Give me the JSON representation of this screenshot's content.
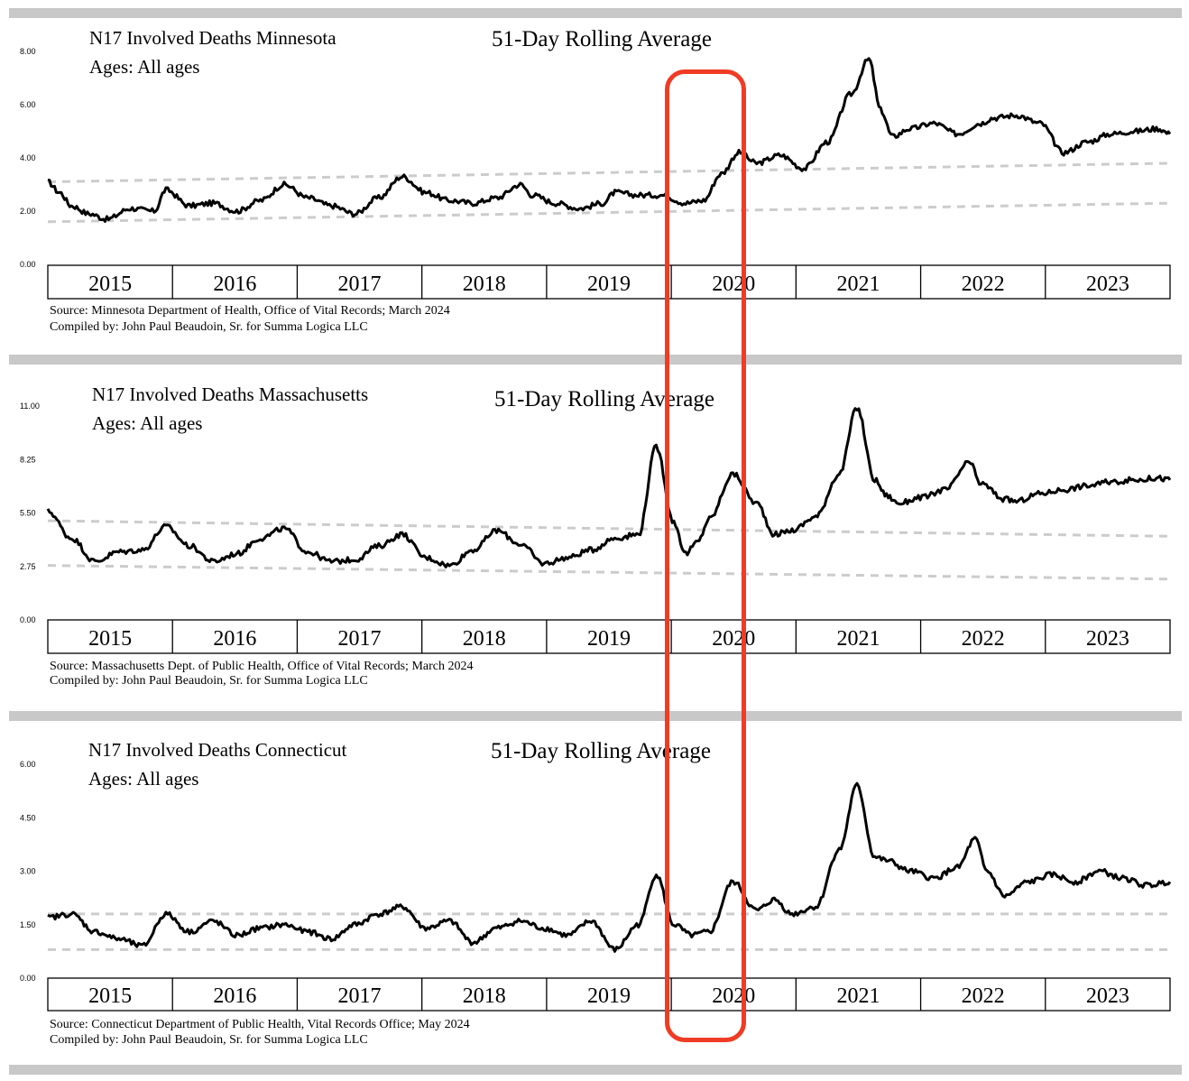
{
  "chart_data": [
    {
      "type": "line",
      "title": "N17 Involved Deaths Minnesota",
      "subtitle": "Ages:  All ages",
      "annotation": "51-Day Rolling Average",
      "categories": [
        "2015",
        "2016",
        "2017",
        "2018",
        "2019",
        "2020",
        "2021",
        "2022",
        "2023"
      ],
      "yticks": [
        "0.00",
        "2.00",
        "4.00",
        "6.00",
        "8.00"
      ],
      "ylim": [
        0,
        8
      ],
      "series": [
        {
          "x": [
            2015.0,
            2015.1,
            2015.2,
            2015.35,
            2015.5,
            2015.7,
            2015.9,
            2016.0,
            2016.2,
            2016.4,
            2016.6,
            2016.8,
            2017.0,
            2017.2,
            2017.4,
            2017.6,
            2017.8,
            2018.0,
            2018.2,
            2018.4,
            2018.6,
            2018.8,
            2019.0,
            2019.1,
            2019.3,
            2019.5,
            2019.7,
            2019.8,
            2020.0,
            2020.2,
            2020.4,
            2020.55,
            2020.7,
            2020.85,
            2021.0,
            2021.2,
            2021.4,
            2021.6,
            2021.8,
            2021.95,
            2022.05,
            2022.15,
            2022.3,
            2022.5,
            2022.7,
            2022.9,
            2023.0,
            2023.2,
            2023.4,
            2023.6,
            2023.8,
            2024.0,
            2024.2,
            2024.4,
            2024.5
          ],
          "values": [
            3.1,
            2.7,
            2.2,
            1.9,
            1.7,
            2.1,
            2.0,
            2.8,
            2.2,
            2.3,
            2.0,
            2.4,
            3.0,
            2.5,
            2.2,
            1.9,
            2.5,
            3.3,
            2.7,
            2.4,
            2.3,
            2.5,
            3.0,
            2.6,
            2.3,
            2.1,
            2.3,
            2.7,
            2.6,
            2.6,
            2.3,
            2.4,
            3.4,
            4.2,
            3.8,
            4.1,
            3.6,
            4.6,
            6.4,
            7.7,
            5.8,
            4.8,
            5.1,
            5.3,
            4.9,
            5.3,
            5.5,
            5.6,
            5.3,
            4.2,
            4.6,
            4.9,
            5.0,
            5.1,
            4.9
          ]
        }
      ],
      "trend_lines": [
        {
          "start": 3.1,
          "end": 3.8
        },
        {
          "start": 1.6,
          "end": 2.3
        }
      ],
      "source": "Source:  Minnesota Department of Health, Office of Vital Records; March 2024",
      "compiled": "Compiled by:  John Paul Beaudoin, Sr. for Summa Logica LLC"
    },
    {
      "type": "line",
      "title": "N17 Involved Deaths Massachusetts",
      "subtitle": "Ages:  All ages",
      "annotation": "51-Day Rolling Average",
      "categories": [
        "2015",
        "2016",
        "2017",
        "2018",
        "2019",
        "2020",
        "2021",
        "2022",
        "2023"
      ],
      "yticks": [
        "0.00",
        "2.75",
        "5.50",
        "8.25",
        "11.00"
      ],
      "ylim": [
        0,
        11
      ],
      "series": [
        {
          "x": [
            2015.0,
            2015.2,
            2015.4,
            2015.6,
            2015.8,
            2016.0,
            2016.2,
            2016.4,
            2016.6,
            2016.8,
            2017.0,
            2017.2,
            2017.4,
            2017.6,
            2017.8,
            2018.0,
            2018.2,
            2018.4,
            2018.6,
            2018.8,
            2019.0,
            2019.2,
            2019.4,
            2019.6,
            2019.8,
            2020.0,
            2020.15,
            2020.3,
            2020.4,
            2020.5,
            2020.6,
            2020.8,
            2021.0,
            2021.15,
            2021.3,
            2021.5,
            2021.7,
            2021.85,
            2022.0,
            2022.1,
            2022.2,
            2022.4,
            2022.6,
            2022.8,
            2022.9,
            2023.1,
            2023.2,
            2023.4,
            2023.6,
            2023.8,
            2024.0,
            2024.2,
            2024.4,
            2024.5
          ],
          "values": [
            5.6,
            4.2,
            3.0,
            3.5,
            3.6,
            4.8,
            3.8,
            3.0,
            3.4,
            4.2,
            4.7,
            3.5,
            3.0,
            3.1,
            3.8,
            4.4,
            3.2,
            2.8,
            3.6,
            4.6,
            3.9,
            2.9,
            3.2,
            3.6,
            4.2,
            4.4,
            8.9,
            5.0,
            3.4,
            4.0,
            5.2,
            7.5,
            6.0,
            4.4,
            4.6,
            5.3,
            7.5,
            10.9,
            7.2,
            6.4,
            6.0,
            6.3,
            6.7,
            8.1,
            7.0,
            6.2,
            6.1,
            6.5,
            6.7,
            6.9,
            7.1,
            7.2,
            7.3,
            7.2
          ]
        }
      ],
      "trend_lines": [
        {
          "start": 5.1,
          "end": 4.3
        },
        {
          "start": 2.8,
          "end": 2.1
        }
      ],
      "source": "Source:  Massachusetts Dept. of Public Health, Office of Vital Records; March 2024",
      "compiled": "Compiled by:  John Paul Beaudoin, Sr. for Summa Logica LLC"
    },
    {
      "type": "line",
      "title": "N17 Involved Deaths Connecticut",
      "subtitle": "Ages:  All ages",
      "annotation": "51-Day Rolling Average",
      "categories": [
        "2015",
        "2016",
        "2017",
        "2018",
        "2019",
        "2020",
        "2021",
        "2022",
        "2023"
      ],
      "yticks": [
        "0.00",
        "1.50",
        "3.00",
        "4.50",
        "6.00"
      ],
      "ylim": [
        0,
        6
      ],
      "series": [
        {
          "x": [
            2015.0,
            2015.2,
            2015.4,
            2015.6,
            2015.8,
            2016.0,
            2016.2,
            2016.4,
            2016.6,
            2016.8,
            2017.0,
            2017.2,
            2017.4,
            2017.6,
            2017.8,
            2018.0,
            2018.2,
            2018.4,
            2018.6,
            2018.8,
            2019.0,
            2019.2,
            2019.4,
            2019.6,
            2019.8,
            2020.0,
            2020.15,
            2020.3,
            2020.45,
            2020.6,
            2020.8,
            2021.0,
            2021.15,
            2021.3,
            2021.5,
            2021.7,
            2021.85,
            2022.0,
            2022.1,
            2022.3,
            2022.5,
            2022.7,
            2022.85,
            2022.95,
            2023.1,
            2023.3,
            2023.5,
            2023.7,
            2023.9,
            2024.1,
            2024.3,
            2024.5
          ],
          "values": [
            1.7,
            1.8,
            1.3,
            1.1,
            0.9,
            1.8,
            1.3,
            1.6,
            1.2,
            1.4,
            1.5,
            1.3,
            1.1,
            1.5,
            1.8,
            2.0,
            1.4,
            1.6,
            1.0,
            1.4,
            1.6,
            1.4,
            1.2,
            1.6,
            0.8,
            1.5,
            2.9,
            1.5,
            1.2,
            1.3,
            2.7,
            1.9,
            2.2,
            1.8,
            2.0,
            3.6,
            5.4,
            3.4,
            3.3,
            3.0,
            2.8,
            3.1,
            3.9,
            3.0,
            2.3,
            2.7,
            2.9,
            2.7,
            3.0,
            2.8,
            2.6,
            2.7
          ]
        }
      ],
      "trend_lines": [
        {
          "start": 1.8,
          "end": 1.8
        },
        {
          "start": 0.8,
          "end": 0.8
        }
      ],
      "source": "Source:  Connecticut Department of Public Health, Vital Records Office; May 2024",
      "compiled": "Compiled by:  John Paul Beaudoin, Sr. for Summa Logica LLC"
    }
  ],
  "highlight_color": "#f03c24",
  "separator_color": "#c8c8c8",
  "trend_line_color": "#cccccc",
  "series_color": "#000000"
}
